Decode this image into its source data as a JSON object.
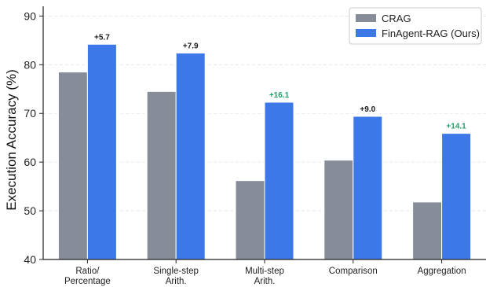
{
  "chart_data": {
    "type": "bar",
    "title": "",
    "xlabel": "",
    "ylabel": "Execution Accuracy (%)",
    "ylim": [
      40,
      92
    ],
    "yticks": [
      40,
      50,
      60,
      70,
      80,
      90
    ],
    "grid": "horizontal dashed",
    "legend_position": "top-right",
    "categories": [
      [
        "Ratio/",
        "Percentage"
      ],
      [
        "Single-step",
        "Arith."
      ],
      [
        "Multi-step",
        "Arith."
      ],
      [
        "Comparison"
      ],
      [
        "Aggregation"
      ]
    ],
    "series": [
      {
        "name": "CRAG",
        "color": "#878d98",
        "values": [
          78.5,
          74.5,
          56.2,
          60.4,
          51.8
        ]
      },
      {
        "name": "FinAgent-RAG (Ours)",
        "color": "#3d78e8",
        "values": [
          84.2,
          82.4,
          72.3,
          69.4,
          65.9
        ]
      }
    ],
    "annotations": [
      {
        "text": "+5.7",
        "color": "#1a1a1a"
      },
      {
        "text": "+7.9",
        "color": "#1a1a1a"
      },
      {
        "text": "+16.1",
        "color": "#1e9e6a"
      },
      {
        "text": "+9.0",
        "color": "#1a1a1a"
      },
      {
        "text": "+14.1",
        "color": "#1e9e6a"
      }
    ]
  }
}
